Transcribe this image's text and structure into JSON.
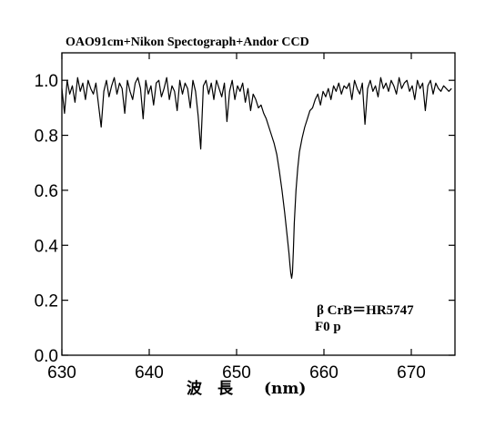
{
  "chart_data": {
    "type": "line",
    "title": "OAO91cm+Nikon Spectograph+Andor CCD",
    "xlabel": "波　長　　(nm)",
    "ylabel": "",
    "xlim": [
      630,
      675
    ],
    "ylim": [
      0.0,
      1.1
    ],
    "x_ticks": [
      630,
      640,
      650,
      660,
      670
    ],
    "y_ticks": [
      0.0,
      0.2,
      0.4,
      0.6,
      0.8,
      1.0
    ],
    "x_tick_labels": [
      "630",
      "640",
      "650",
      "660",
      "670"
    ],
    "y_tick_labels": [
      "0.0",
      "0.2",
      "0.4",
      "0.6",
      "0.8",
      "1.0"
    ],
    "grid": false,
    "annotations": [
      "β CrB＝HR5747",
      "F0 p"
    ],
    "series": [
      {
        "color": "#000000",
        "x": [
          630.0,
          630.3,
          630.6,
          630.9,
          631.2,
          631.5,
          631.8,
          632.1,
          632.4,
          632.7,
          633.0,
          633.3,
          633.6,
          633.9,
          634.2,
          634.5,
          634.8,
          635.1,
          635.4,
          635.7,
          636.0,
          636.3,
          636.6,
          636.9,
          637.2,
          637.5,
          637.8,
          638.1,
          638.4,
          638.7,
          639.0,
          639.3,
          639.6,
          639.9,
          640.2,
          640.5,
          640.8,
          641.1,
          641.4,
          641.7,
          642.0,
          642.3,
          642.6,
          642.9,
          643.2,
          643.5,
          643.8,
          644.1,
          644.4,
          644.7,
          645.0,
          645.3,
          645.6,
          645.9,
          646.2,
          646.5,
          646.8,
          647.1,
          647.4,
          647.7,
          648.0,
          648.3,
          648.6,
          648.9,
          649.2,
          649.5,
          649.8,
          650.1,
          650.4,
          650.7,
          651.0,
          651.3,
          651.6,
          651.9,
          652.2,
          652.5,
          652.8,
          653.1,
          653.4,
          653.7,
          654.0,
          654.3,
          654.6,
          654.9,
          655.2,
          655.5,
          655.8,
          656.0,
          656.1,
          656.2,
          656.3,
          656.4,
          656.5,
          656.6,
          656.8,
          657.0,
          657.2,
          657.5,
          657.8,
          658.1,
          658.4,
          658.7,
          659.0,
          659.3,
          659.6,
          659.9,
          660.2,
          660.5,
          660.8,
          661.1,
          661.4,
          661.7,
          662.0,
          662.3,
          662.6,
          662.9,
          663.2,
          663.5,
          663.8,
          664.1,
          664.4,
          664.7,
          665.0,
          665.3,
          665.6,
          665.9,
          666.2,
          666.5,
          666.8,
          667.1,
          667.4,
          667.7,
          668.0,
          668.3,
          668.6,
          668.9,
          669.2,
          669.5,
          669.8,
          670.1,
          670.4,
          670.7,
          671.0,
          671.3,
          671.6,
          671.9,
          672.2,
          672.5,
          672.8,
          673.1,
          673.4,
          673.7,
          674.0,
          674.3,
          674.6
        ],
        "y": [
          0.97,
          0.88,
          1.0,
          0.95,
          0.98,
          0.92,
          1.01,
          0.96,
          0.99,
          0.93,
          1.0,
          0.97,
          0.95,
          0.99,
          0.91,
          0.83,
          0.96,
          1.0,
          0.94,
          0.98,
          1.01,
          0.95,
          0.99,
          0.97,
          0.88,
          1.0,
          0.96,
          0.93,
          0.99,
          1.01,
          0.97,
          0.86,
          1.0,
          0.95,
          0.98,
          0.91,
          0.99,
          1.0,
          0.94,
          0.97,
          1.01,
          0.93,
          0.98,
          0.96,
          0.89,
          1.0,
          0.95,
          0.99,
          0.97,
          0.9,
          1.0,
          0.96,
          0.87,
          0.75,
          0.98,
          1.0,
          0.95,
          0.99,
          0.93,
          1.0,
          0.97,
          0.94,
          0.99,
          0.85,
          0.96,
          1.0,
          0.93,
          0.98,
          0.96,
          0.99,
          0.92,
          0.97,
          0.89,
          0.95,
          0.93,
          0.9,
          0.91,
          0.88,
          0.86,
          0.83,
          0.8,
          0.77,
          0.73,
          0.67,
          0.6,
          0.52,
          0.43,
          0.37,
          0.33,
          0.3,
          0.28,
          0.3,
          0.38,
          0.48,
          0.6,
          0.68,
          0.74,
          0.79,
          0.83,
          0.86,
          0.89,
          0.9,
          0.93,
          0.95,
          0.91,
          0.96,
          0.94,
          0.97,
          0.93,
          0.98,
          0.96,
          0.99,
          0.95,
          0.98,
          0.97,
          0.99,
          0.93,
          1.0,
          0.97,
          0.95,
          0.99,
          0.84,
          0.97,
          1.0,
          0.96,
          0.98,
          0.94,
          1.01,
          0.97,
          0.99,
          0.96,
          1.0,
          0.98,
          0.95,
          1.01,
          0.97,
          0.99,
          1.0,
          0.96,
          0.98,
          0.93,
          1.0,
          0.97,
          0.99,
          0.89,
          0.98,
          1.0,
          0.95,
          0.99,
          0.97,
          0.96,
          0.98,
          0.97,
          0.96,
          0.97
        ]
      }
    ]
  }
}
